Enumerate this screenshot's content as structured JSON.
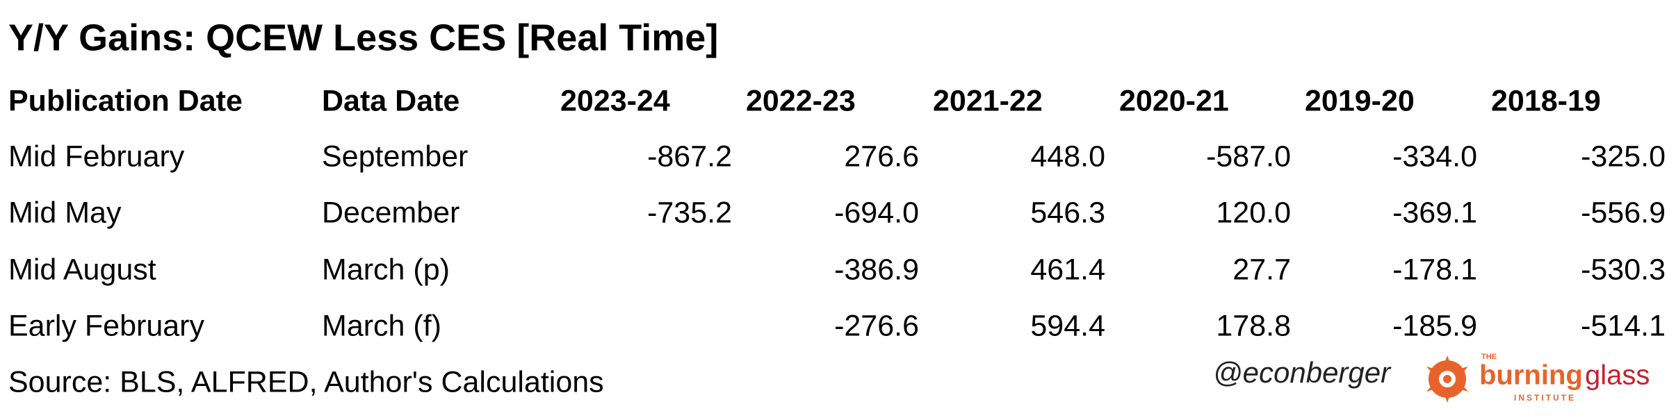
{
  "title": "Y/Y Gains: QCEW Less CES [Real Time]",
  "table": {
    "header": [
      "Publication Date",
      "Data Date",
      "2023-24",
      "2022-23",
      "2021-22",
      "2020-21",
      "2019-20",
      "2018-19"
    ],
    "rows": [
      [
        "Mid February",
        "September",
        "-867.2",
        "276.6",
        "448.0",
        "-587.0",
        "-334.0",
        "-325.0"
      ],
      [
        "Mid May",
        "December",
        "-735.2",
        "-694.0",
        "546.3",
        "120.0",
        "-369.1",
        "-556.9"
      ],
      [
        "Mid August",
        "March (p)",
        null,
        "-386.9",
        "461.4",
        "27.7",
        "-178.1",
        "-530.3"
      ],
      [
        "Early February",
        "March (f)",
        null,
        "-276.6",
        "594.4",
        "178.8",
        "-185.9",
        "-514.1"
      ]
    ]
  },
  "footer": {
    "source": "Source: BLS, ALFRED, Author's Calculations",
    "handle": "@econberger",
    "logo": {
      "top": "THE",
      "word1": "burning",
      "word2": "glass",
      "bottom": "INSTITUTE"
    }
  }
}
